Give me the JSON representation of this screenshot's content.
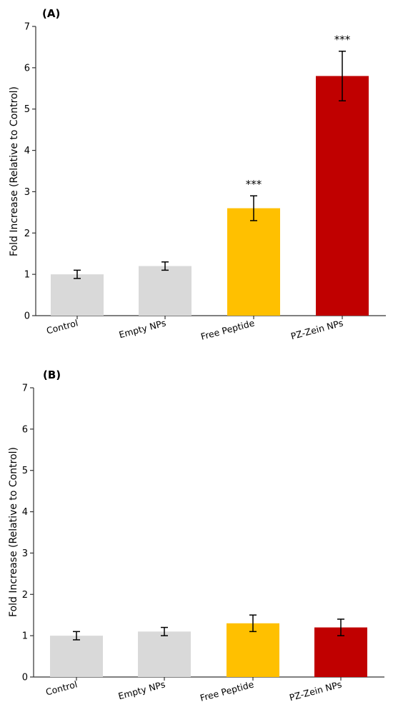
{
  "chart_data": [
    {
      "type": "bar",
      "panel_label": "(A)",
      "categories": [
        "Control",
        "Empty NPs",
        "Free Peptide",
        "PZ-Zein NPs"
      ],
      "values": [
        1.0,
        1.2,
        2.6,
        5.8
      ],
      "errors": [
        0.1,
        0.1,
        0.3,
        0.6
      ],
      "colors": [
        "#d9d9d9",
        "#d9d9d9",
        "#ffc000",
        "#c00000"
      ],
      "annotations": [
        "",
        "",
        "***",
        "***"
      ],
      "ylabel": "Fold Increase (Relative to Control)",
      "ylim": [
        0,
        7
      ],
      "yticks": [
        "0",
        "1",
        "2",
        "3",
        "4",
        "5",
        "6",
        "7"
      ],
      "grid": false
    },
    {
      "type": "bar",
      "panel_label": "(B)",
      "categories": [
        "Control",
        "Empty NPs",
        "Free Peptide",
        "PZ-Zein NPs"
      ],
      "values": [
        1.0,
        1.1,
        1.3,
        1.2
      ],
      "errors": [
        0.1,
        0.1,
        0.2,
        0.2
      ],
      "colors": [
        "#d9d9d9",
        "#d9d9d9",
        "#ffc000",
        "#c00000"
      ],
      "annotations": [
        "",
        "",
        "",
        ""
      ],
      "ylabel": "Fold Increase (Relative to Control)",
      "ylim": [
        0,
        7
      ],
      "yticks": [
        "0",
        "1",
        "2",
        "3",
        "4",
        "5",
        "6",
        "7"
      ],
      "grid": false
    }
  ]
}
